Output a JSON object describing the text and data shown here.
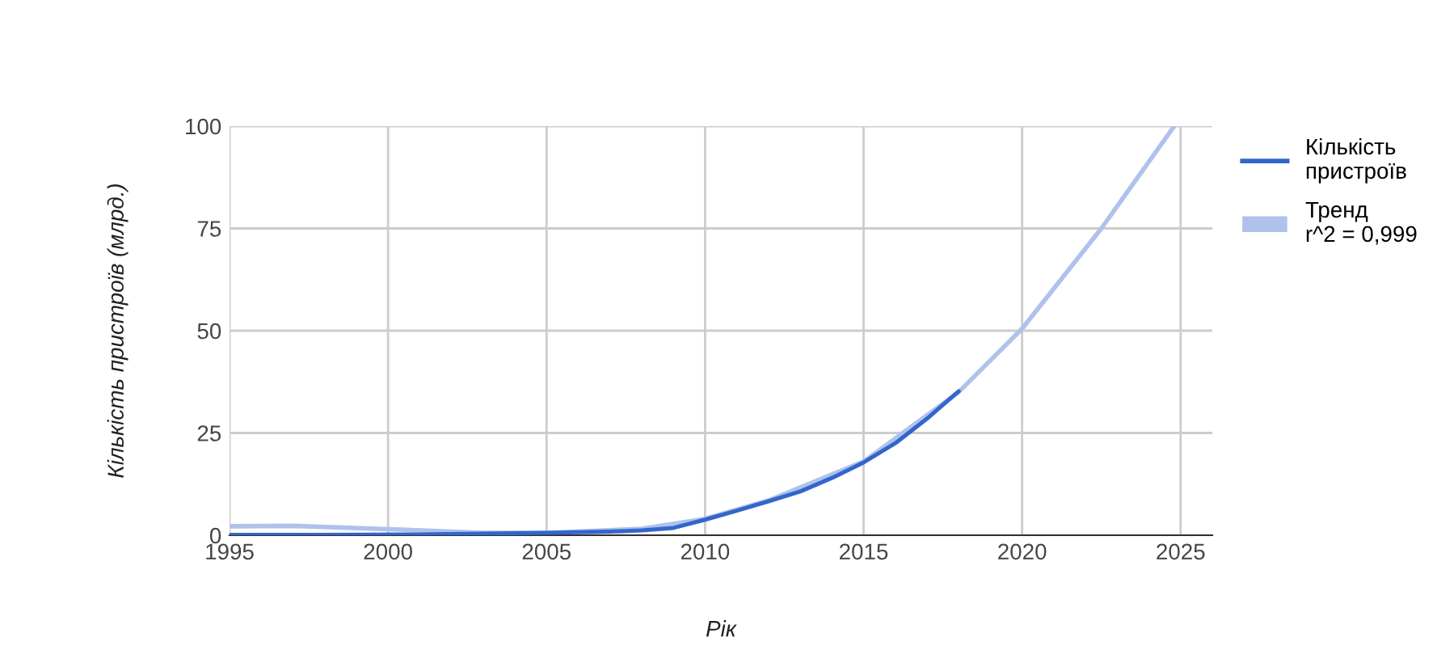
{
  "chart_data": {
    "type": "line",
    "xlabel": "Рік",
    "ylabel": "Кількість пристроїв (млрд.)",
    "xlim": [
      1995,
      2026
    ],
    "xticks": [
      1995,
      2000,
      2005,
      2010,
      2015,
      2020,
      2025
    ],
    "ylim": [
      0,
      100
    ],
    "yticks": [
      0,
      25,
      50,
      75,
      100
    ],
    "grid": true,
    "legend": "right",
    "series": [
      {
        "name": "Кількість\nпристроїв",
        "color": "#3366cc",
        "x": [
          1995,
          1998,
          2001,
          2003,
          2005,
          2007,
          2008,
          2009,
          2010,
          2011,
          2012,
          2013,
          2014,
          2015,
          2016,
          2017,
          2018
        ],
        "values": [
          0.1,
          0.1,
          0.2,
          0.4,
          0.6,
          0.9,
          1.2,
          1.8,
          3.8,
          6.0,
          8.3,
          10.7,
          14.0,
          17.8,
          22.5,
          28.5,
          35.2
        ]
      },
      {
        "name": "Тренд\nr^2 = 0,999",
        "color": "#aec2ec",
        "x": [
          1995,
          1997,
          2000,
          2003,
          2005,
          2008,
          2010,
          2012,
          2015,
          2018,
          2020,
          2022.5,
          2024.8
        ],
        "values": [
          2.2,
          2.3,
          1.5,
          0.6,
          0.6,
          1.6,
          4.0,
          8.5,
          18.0,
          35.0,
          50.5,
          75.0,
          100.0
        ]
      }
    ]
  }
}
